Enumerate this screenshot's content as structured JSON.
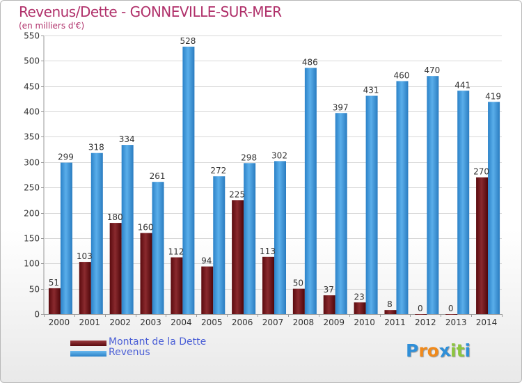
{
  "header": {
    "title": "Revenus/Dette - GONNEVILLE-SUR-MER",
    "subtitle": "(en milliers d'€)"
  },
  "chart_data": {
    "type": "bar",
    "title": "Revenus/Dette - GONNEVILLE-SUR-MER",
    "subtitle": "(en milliers d'€)",
    "categories": [
      "2000",
      "2001",
      "2002",
      "2003",
      "2004",
      "2005",
      "2006",
      "2007",
      "2008",
      "2009",
      "2010",
      "2011",
      "2012",
      "2013",
      "2014"
    ],
    "series": [
      {
        "name": "Montant de la Dette",
        "color": "#7a1a1e",
        "values": [
          51,
          103,
          180,
          160,
          112,
          94,
          225,
          113,
          50,
          37,
          23,
          8,
          0,
          0,
          270
        ]
      },
      {
        "name": "Revenus",
        "color": "#3b96dc",
        "values": [
          299,
          318,
          334,
          261,
          528,
          272,
          298,
          302,
          486,
          397,
          431,
          460,
          470,
          441,
          419
        ]
      }
    ],
    "ylim": [
      0,
      550
    ],
    "yticks": [
      0,
      50,
      100,
      150,
      200,
      250,
      300,
      350,
      400,
      450,
      500,
      550
    ],
    "grid": true,
    "legend_position": "bottom-left"
  },
  "legend": {
    "items": [
      {
        "label": "Montant de la Dette",
        "color": "#6e1015"
      },
      {
        "label": "Revenus",
        "color": "#3b96dc"
      }
    ]
  },
  "logo": {
    "letters": [
      "P",
      "r",
      "o",
      "x",
      "i",
      "t",
      "i"
    ],
    "colors": [
      "#2f8fd8",
      "#f08a1c",
      "#f08a1c",
      "#2f8fd8",
      "#8dc63f",
      "#8dc63f",
      "#2f8fd8"
    ]
  }
}
